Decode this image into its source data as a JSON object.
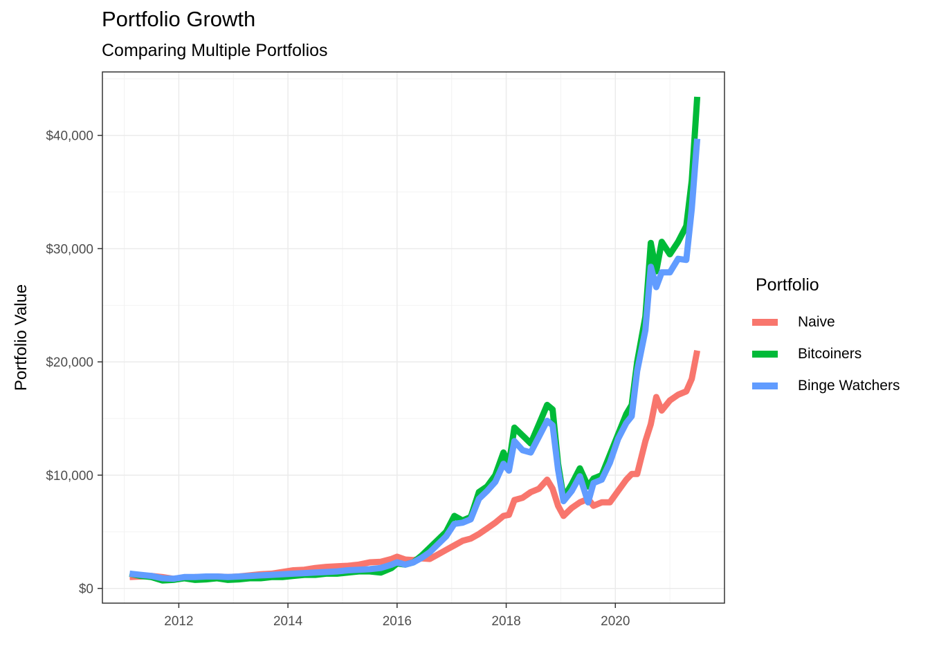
{
  "chart_data": {
    "type": "line",
    "title": "Portfolio Growth",
    "subtitle": "Comparing Multiple Portfolios",
    "xlabel": "",
    "ylabel": "Portfolio Value",
    "xlim": [
      2010.6,
      2022.0
    ],
    "ylim": [
      -1300,
      45600
    ],
    "x_ticks": [
      2012,
      2014,
      2016,
      2018,
      2020
    ],
    "x_tick_labels": [
      "2012",
      "2014",
      "2016",
      "2018",
      "2020"
    ],
    "y_ticks": [
      0,
      10000,
      20000,
      30000,
      40000
    ],
    "y_tick_labels": [
      "$0",
      "$10,000",
      "$20,000",
      "$30,000",
      "$40,000"
    ],
    "grid": true,
    "legend": {
      "title": "Portfolio",
      "position": "right"
    },
    "series": [
      {
        "name": "Naive",
        "color": "#F8766D",
        "x": [
          2011.1,
          2011.3,
          2011.5,
          2011.7,
          2011.9,
          2012.1,
          2012.3,
          2012.5,
          2012.7,
          2012.9,
          2013.1,
          2013.3,
          2013.5,
          2013.7,
          2013.9,
          2014.1,
          2014.3,
          2014.5,
          2014.7,
          2014.9,
          2015.1,
          2015.3,
          2015.5,
          2015.7,
          2015.9,
          2016.0,
          2016.15,
          2016.3,
          2016.45,
          2016.6,
          2016.75,
          2016.9,
          2017.05,
          2017.2,
          2017.35,
          2017.5,
          2017.65,
          2017.8,
          2017.95,
          2018.05,
          2018.15,
          2018.3,
          2018.45,
          2018.6,
          2018.75,
          2018.85,
          2018.95,
          2019.05,
          2019.2,
          2019.35,
          2019.5,
          2019.6,
          2019.75,
          2019.9,
          2020.05,
          2020.2,
          2020.3,
          2020.4,
          2020.55,
          2020.65,
          2020.75,
          2020.85,
          2021.0,
          2021.15,
          2021.3,
          2021.4,
          2021.5
        ],
        "values": [
          1000,
          1050,
          1100,
          1000,
          850,
          900,
          1000,
          950,
          1050,
          1000,
          1050,
          1150,
          1250,
          1300,
          1450,
          1600,
          1650,
          1800,
          1900,
          1950,
          2000,
          2100,
          2300,
          2350,
          2600,
          2800,
          2550,
          2500,
          2650,
          2600,
          3000,
          3400,
          3800,
          4200,
          4400,
          4800,
          5300,
          5800,
          6400,
          6500,
          7800,
          8000,
          8500,
          8800,
          9600,
          8800,
          7300,
          6400,
          7100,
          7600,
          7900,
          7300,
          7600,
          7600,
          8600,
          9600,
          10100,
          10100,
          13000,
          14500,
          16900,
          15700,
          16600,
          17100,
          17400,
          18500,
          21000
        ]
      },
      {
        "name": "Bitcoiners",
        "color": "#00BA38",
        "x": [
          2011.1,
          2011.3,
          2011.5,
          2011.7,
          2011.9,
          2012.1,
          2012.3,
          2012.5,
          2012.7,
          2012.9,
          2013.1,
          2013.3,
          2013.5,
          2013.7,
          2013.9,
          2014.1,
          2014.3,
          2014.5,
          2014.7,
          2014.9,
          2015.1,
          2015.3,
          2015.5,
          2015.7,
          2015.9,
          2016.0,
          2016.15,
          2016.3,
          2016.45,
          2016.6,
          2016.75,
          2016.9,
          2017.05,
          2017.2,
          2017.35,
          2017.5,
          2017.65,
          2017.8,
          2017.95,
          2018.05,
          2018.15,
          2018.3,
          2018.45,
          2018.6,
          2018.75,
          2018.85,
          2018.95,
          2019.05,
          2019.2,
          2019.35,
          2019.5,
          2019.6,
          2019.75,
          2019.9,
          2020.05,
          2020.2,
          2020.3,
          2020.4,
          2020.55,
          2020.65,
          2020.75,
          2020.85,
          2021.0,
          2021.15,
          2021.3,
          2021.4,
          2021.5
        ],
        "values": [
          1300,
          1100,
          1000,
          700,
          750,
          900,
          750,
          800,
          900,
          750,
          800,
          900,
          900,
          1000,
          1000,
          1100,
          1200,
          1200,
          1300,
          1300,
          1400,
          1500,
          1500,
          1400,
          1800,
          2200,
          2100,
          2300,
          2900,
          3600,
          4300,
          5000,
          6400,
          6000,
          6300,
          8500,
          9000,
          10000,
          12000,
          11000,
          14200,
          13500,
          12800,
          14500,
          16200,
          15800,
          11000,
          8000,
          9200,
          10600,
          9000,
          9700,
          10000,
          11800,
          13600,
          15400,
          16200,
          20000,
          24000,
          30500,
          28000,
          30600,
          29500,
          30600,
          32000,
          36000,
          43400
        ]
      },
      {
        "name": "Binge Watchers",
        "color": "#619CFF",
        "x": [
          2011.1,
          2011.3,
          2011.5,
          2011.7,
          2011.9,
          2012.1,
          2012.3,
          2012.5,
          2012.7,
          2012.9,
          2013.1,
          2013.3,
          2013.5,
          2013.7,
          2013.9,
          2014.1,
          2014.3,
          2014.5,
          2014.7,
          2014.9,
          2015.1,
          2015.3,
          2015.5,
          2015.7,
          2015.9,
          2016.0,
          2016.15,
          2016.3,
          2016.45,
          2016.6,
          2016.75,
          2016.9,
          2017.05,
          2017.2,
          2017.35,
          2017.5,
          2017.65,
          2017.8,
          2017.95,
          2018.05,
          2018.15,
          2018.3,
          2018.45,
          2018.6,
          2018.75,
          2018.85,
          2018.95,
          2019.05,
          2019.2,
          2019.35,
          2019.5,
          2019.6,
          2019.75,
          2019.9,
          2020.05,
          2020.2,
          2020.3,
          2020.4,
          2020.55,
          2020.65,
          2020.75,
          2020.85,
          2021.0,
          2021.15,
          2021.3,
          2021.4,
          2021.5
        ],
        "values": [
          1300,
          1200,
          1100,
          900,
          850,
          1000,
          1000,
          1050,
          1050,
          1000,
          1050,
          1100,
          1150,
          1200,
          1250,
          1300,
          1350,
          1400,
          1450,
          1500,
          1600,
          1650,
          1700,
          1800,
          2100,
          2300,
          2100,
          2300,
          2700,
          3200,
          3900,
          4600,
          5700,
          5800,
          6100,
          7900,
          8600,
          9400,
          11000,
          10400,
          13000,
          12200,
          12000,
          13400,
          14800,
          14400,
          10500,
          7700,
          8600,
          9900,
          7600,
          9300,
          9600,
          11100,
          13200,
          14600,
          15200,
          19200,
          22800,
          28400,
          26600,
          27900,
          27900,
          29100,
          29000,
          33500,
          39700
        ]
      }
    ]
  }
}
